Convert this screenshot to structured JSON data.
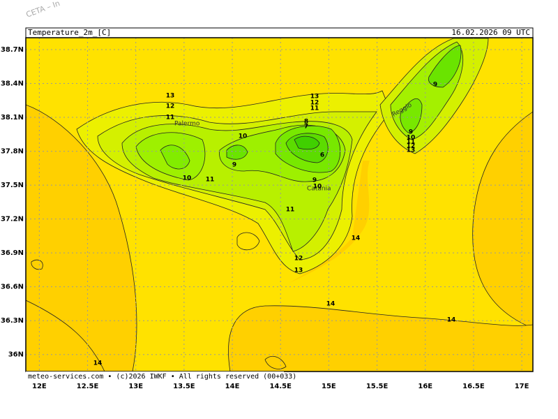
{
  "watermark": "CETA – In",
  "header": {
    "title": "Temperature_2m_[C]",
    "time": "16.02.2026 09 UTC"
  },
  "map": {
    "xlim": [
      11.86,
      17.115
    ],
    "ylim": [
      35.85,
      38.805
    ],
    "xticks": [
      {
        "value": 12,
        "label": "12E"
      },
      {
        "value": 12.5,
        "label": "12.5E"
      },
      {
        "value": 13,
        "label": "13E"
      },
      {
        "value": 13.5,
        "label": "13.5E"
      },
      {
        "value": 14,
        "label": "14E"
      },
      {
        "value": 14.5,
        "label": "14.5E"
      },
      {
        "value": 15,
        "label": "15E"
      },
      {
        "value": 15.5,
        "label": "15.5E"
      },
      {
        "value": 16,
        "label": "16E"
      },
      {
        "value": 16.5,
        "label": "16.5E"
      },
      {
        "value": 17,
        "label": "17E"
      }
    ],
    "yticks": [
      {
        "value": 38.7,
        "label": "38.7N"
      },
      {
        "value": 38.4,
        "label": "38.4N"
      },
      {
        "value": 38.1,
        "label": "38.1N"
      },
      {
        "value": 37.8,
        "label": "37.8N"
      },
      {
        "value": 37.5,
        "label": "37.5N"
      },
      {
        "value": 37.2,
        "label": "37.2N"
      },
      {
        "value": 36.9,
        "label": "36.9N"
      },
      {
        "value": 36.6,
        "label": "36.6N"
      },
      {
        "value": 36.3,
        "label": "36.3N"
      },
      {
        "value": 36,
        "label": "36N"
      }
    ],
    "places": [
      "Palermo",
      "Catania",
      "Reggio"
    ],
    "contour_labels": [
      13,
      12,
      11,
      10,
      11,
      10,
      9,
      13,
      12,
      11,
      8,
      7,
      6,
      9,
      10,
      11,
      12,
      13,
      14,
      14,
      14,
      14,
      9,
      9,
      10,
      11,
      12,
      13
    ]
  },
  "footer": "meteo-services.com • (c)2026 IWKF • All rights reserved (00+033)"
}
